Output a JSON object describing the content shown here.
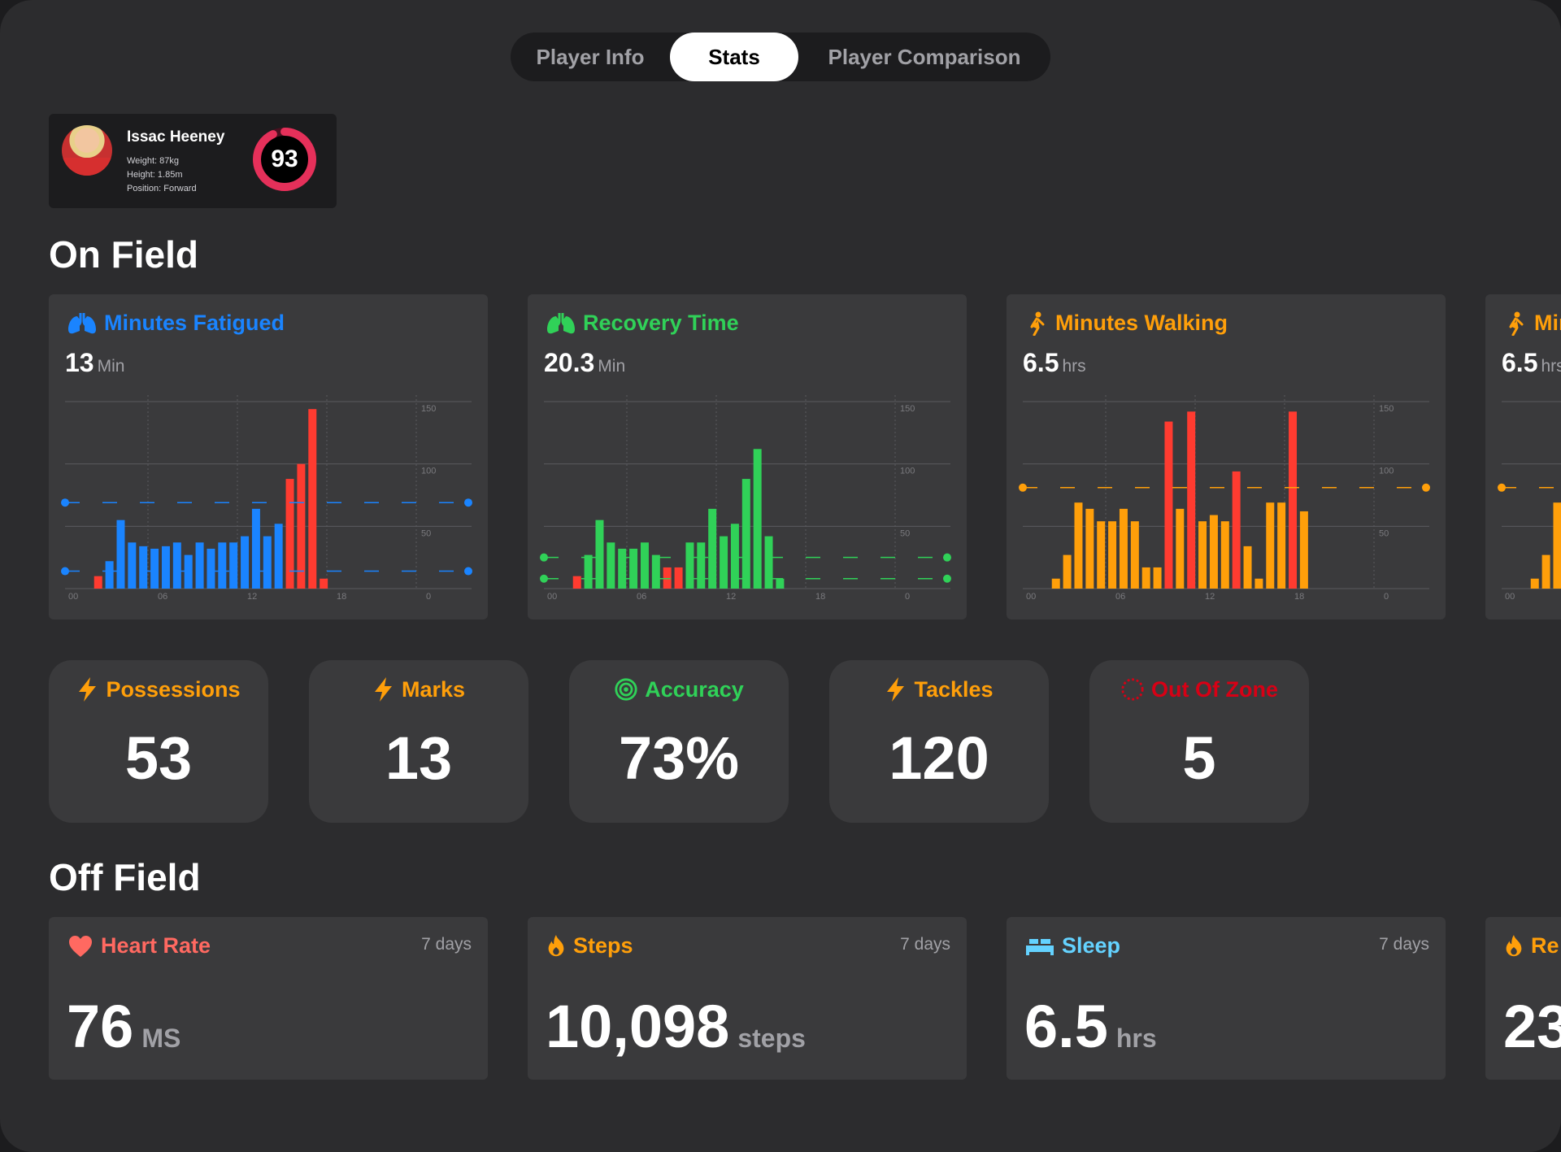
{
  "tabs": [
    {
      "label": "Player Info",
      "active": false
    },
    {
      "label": "Stats",
      "active": true
    },
    {
      "label": "Player Comparison",
      "active": false
    }
  ],
  "player": {
    "name": "Issac Heeney",
    "weight": "Weight: 87kg",
    "height": "Height: 1.85m",
    "position": "Position: Forward",
    "rating": "93",
    "rating_fraction": 0.93,
    "rating_color": "#e5305a"
  },
  "sections": {
    "on_field": "On Field",
    "off_field": "Off Field"
  },
  "chart_data": [
    {
      "type": "bar",
      "title": "Minutes Fatigued",
      "value": "13",
      "unit": "Min",
      "color": "#1a84ff",
      "highlight_color": "#ff3b30",
      "icon": "lungs-icon",
      "x_ticks": [
        "00",
        "06",
        "12",
        "18",
        "0"
      ],
      "y_ticks": [
        "150",
        "100",
        "50"
      ],
      "ylim": [
        0,
        150
      ],
      "reference_lines": [
        69,
        14
      ],
      "values": [
        0,
        0,
        10,
        22,
        55,
        37,
        34,
        32,
        34,
        37,
        27,
        37,
        32,
        37,
        37,
        42,
        64,
        42,
        52,
        88,
        100,
        144,
        8
      ],
      "highlight": [
        false,
        false,
        true,
        false,
        false,
        false,
        false,
        false,
        false,
        false,
        false,
        false,
        false,
        false,
        false,
        false,
        false,
        false,
        false,
        true,
        true,
        true,
        true
      ]
    },
    {
      "type": "bar",
      "title": "Recovery Time",
      "value": "20.3",
      "unit": "Min",
      "color": "#30d158",
      "highlight_color": "#ff3b30",
      "icon": "lungs-icon",
      "x_ticks": [
        "00",
        "06",
        "12",
        "18",
        "0"
      ],
      "y_ticks": [
        "150",
        "100",
        "50"
      ],
      "ylim": [
        0,
        150
      ],
      "reference_lines": [
        25,
        8
      ],
      "values": [
        0,
        0,
        10,
        27,
        55,
        37,
        32,
        32,
        37,
        27,
        17,
        17,
        37,
        37,
        64,
        42,
        52,
        88,
        112,
        42,
        8
      ],
      "highlight": [
        false,
        false,
        true,
        false,
        false,
        false,
        false,
        false,
        false,
        false,
        true,
        true,
        false,
        false,
        false,
        false,
        false,
        false,
        false,
        false,
        false
      ]
    },
    {
      "type": "bar",
      "title": "Minutes Walking",
      "value": "6.5",
      "unit": "hrs",
      "color": "#ff9f0a",
      "highlight_color": "#ff3b30",
      "icon": "walking-icon",
      "x_ticks": [
        "00",
        "06",
        "12",
        "18",
        "0"
      ],
      "y_ticks": [
        "150",
        "100",
        "50"
      ],
      "ylim": [
        0,
        150
      ],
      "reference_lines": [
        81
      ],
      "values": [
        0,
        0,
        8,
        27,
        69,
        64,
        54,
        54,
        64,
        54,
        17,
        17,
        134,
        64,
        142,
        54,
        59,
        54,
        94,
        34,
        8,
        69,
        69,
        142,
        62
      ],
      "highlight": [
        false,
        false,
        false,
        false,
        false,
        false,
        false,
        false,
        false,
        false,
        false,
        false,
        true,
        false,
        true,
        false,
        false,
        false,
        true,
        false,
        false,
        false,
        false,
        true,
        false
      ]
    },
    {
      "type": "bar",
      "title": "Minutes Walking",
      "value": "6.5",
      "unit": "hrs",
      "color": "#ff9f0a",
      "highlight_color": "#ff3b30",
      "icon": "walking-icon",
      "x_ticks": [
        "00"
      ],
      "y_ticks": [],
      "ylim": [
        0,
        150
      ],
      "reference_lines": [
        81
      ],
      "values": [
        0,
        0,
        8,
        27,
        69
      ],
      "highlight": [
        false,
        false,
        false,
        false,
        false
      ]
    }
  ],
  "stats": [
    {
      "label": "Possessions",
      "value": "53",
      "color": "#ff9f0a",
      "icon": "bolt-icon"
    },
    {
      "label": "Marks",
      "value": "13",
      "color": "#ff9f0a",
      "icon": "bolt-icon"
    },
    {
      "label": "Accuracy",
      "value": "73%",
      "color": "#30d158",
      "icon": "target-icon"
    },
    {
      "label": "Tackles",
      "value": "120",
      "color": "#ff9f0a",
      "icon": "bolt-icon"
    },
    {
      "label": "Out Of Zone",
      "value": "5",
      "color": "#d70015",
      "icon": "dashed-circle-icon"
    }
  ],
  "off_field": [
    {
      "label": "Heart Rate",
      "days": "7 days",
      "value": "76",
      "unit": "MS",
      "color": "#ff6961",
      "icon": "heart-icon"
    },
    {
      "label": "Steps",
      "days": "7 days",
      "value": "10,098",
      "unit": "steps",
      "color": "#ff9f0a",
      "icon": "flame-icon"
    },
    {
      "label": "Sleep",
      "days": "7 days",
      "value": "6.5",
      "unit": "hrs",
      "color": "#64d2ff",
      "icon": "bed-icon"
    },
    {
      "label": "Re",
      "days": "",
      "value": "23",
      "unit": "",
      "color": "#ff9f0a",
      "icon": "flame-icon"
    }
  ]
}
